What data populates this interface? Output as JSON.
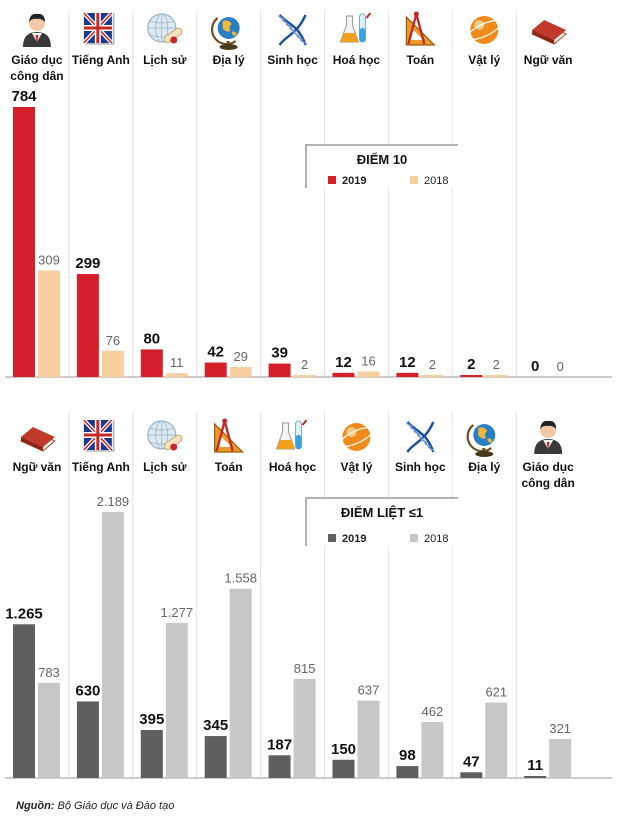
{
  "source": {
    "label": "Nguồn:",
    "text": " Bộ Giáo dục và Đào tạo"
  },
  "colors": {
    "top2019": "#d71f2b",
    "top2018": "#f8cf9e",
    "bot2019": "#5f5f5f",
    "bot2018": "#c7c7c7"
  },
  "chart_data": [
    {
      "type": "bar",
      "title": "ĐIỂM 10",
      "legend": {
        "placement": "top-right"
      },
      "categories": [
        "Giáo dục công dân",
        "Tiếng Anh",
        "Lịch sử",
        "Địa lý",
        "Sinh học",
        "Hoá học",
        "Toán",
        "Vật lý",
        "Ngữ văn"
      ],
      "category_icons": [
        "person-icon",
        "uk-flag-book-icon",
        "globe-diploma-icon",
        "desk-globe-icon",
        "dna-icon",
        "chemistry-flask-icon",
        "geometry-tools-icon",
        "atom-sphere-icon",
        "red-book-icon"
      ],
      "series": [
        {
          "name": "2019",
          "values": [
            784,
            299,
            80,
            42,
            39,
            12,
            12,
            2,
            0
          ],
          "labels": [
            "784",
            "299",
            "80",
            "42",
            "39",
            "12",
            "12",
            "2",
            "0"
          ]
        },
        {
          "name": "2018",
          "values": [
            309,
            76,
            11,
            29,
            2,
            16,
            2,
            2,
            0
          ],
          "labels": [
            "309",
            "76",
            "11",
            "29",
            "2",
            "16",
            "2",
            "2",
            "0"
          ]
        }
      ]
    },
    {
      "type": "bar",
      "title": "ĐIỂM LIỆT ≤1",
      "legend": {
        "placement": "top-right"
      },
      "categories": [
        "Ngữ văn",
        "Tiếng Anh",
        "Lịch sử",
        "Toán",
        "Hoá học",
        "Vật lý",
        "Sinh học",
        "Địa lý",
        "Giáo dục công dân"
      ],
      "category_icons": [
        "red-book-icon",
        "uk-flag-book-icon",
        "globe-diploma-icon",
        "geometry-tools-icon",
        "chemistry-flask-icon",
        "atom-sphere-icon",
        "dna-icon",
        "desk-globe-icon",
        "person-icon"
      ],
      "series": [
        {
          "name": "2019",
          "values": [
            1265,
            630,
            395,
            345,
            187,
            150,
            98,
            47,
            11
          ],
          "labels": [
            "1.265",
            "630",
            "395",
            "345",
            "187",
            "150",
            "98",
            "47",
            "11"
          ]
        },
        {
          "name": "2018",
          "values": [
            783,
            2189,
            1277,
            1558,
            815,
            637,
            462,
            621,
            321
          ],
          "labels": [
            "783",
            "2.189",
            "1.277",
            "1.558",
            "815",
            "637",
            "462",
            "621",
            "321"
          ]
        }
      ]
    }
  ]
}
